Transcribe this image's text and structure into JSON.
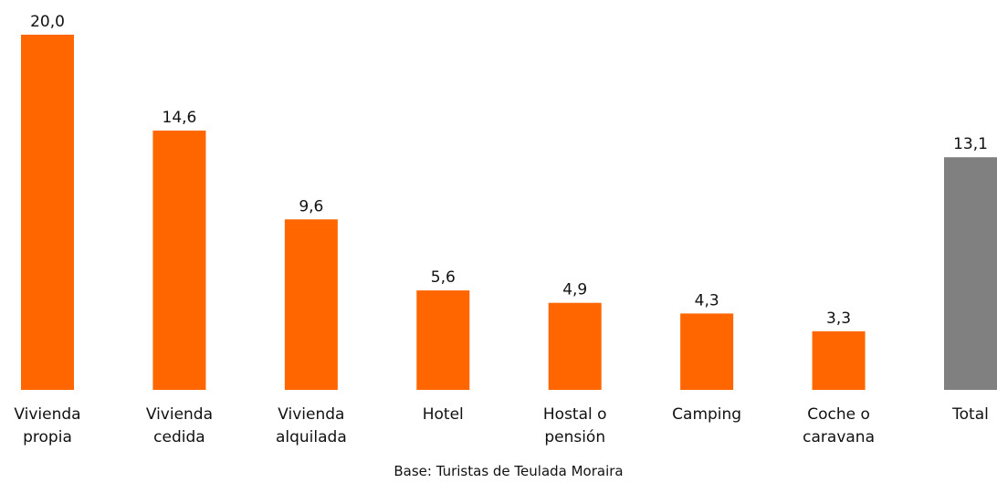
{
  "chart_data": {
    "type": "bar",
    "categories": [
      "Vivienda propia",
      "Vivienda cedida",
      "Vivienda alquilada",
      "Hotel",
      "Hostal o pensión",
      "Camping",
      "Coche o caravana",
      "Total"
    ],
    "values": [
      20.0,
      14.6,
      9.6,
      5.6,
      4.9,
      4.3,
      3.3,
      13.1
    ],
    "value_labels": [
      "20,0",
      "14,6",
      "9,6",
      "5,6",
      "4,9",
      "4,3",
      "3,3",
      "13,1"
    ],
    "colors": [
      "#ff6600",
      "#ff6600",
      "#ff6600",
      "#ff6600",
      "#ff6600",
      "#ff6600",
      "#ff6600",
      "#808080"
    ],
    "ylim": [
      0,
      20
    ],
    "note": "Base: Turistas de Teulada Moraira"
  }
}
